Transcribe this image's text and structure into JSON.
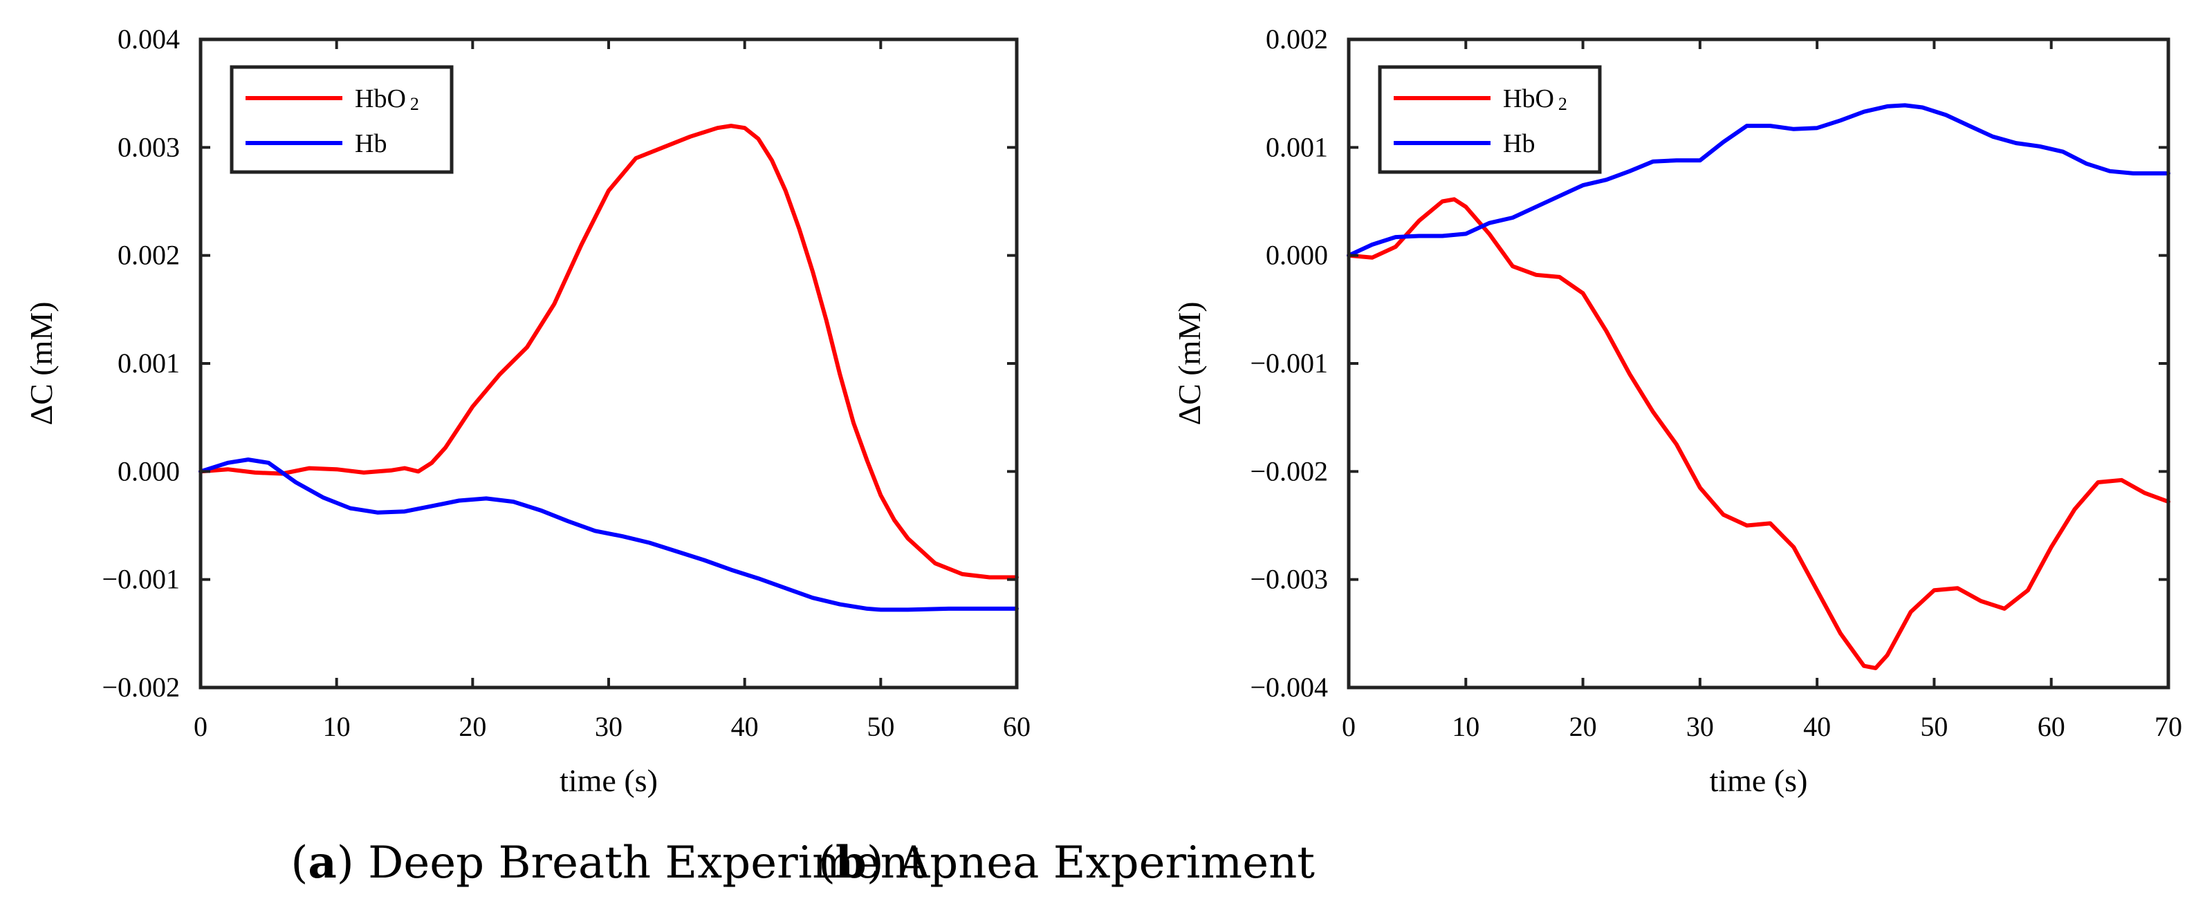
{
  "chart_data": [
    {
      "type": "line",
      "caption_letter": "a",
      "caption_text": "Deep Breath Experiment",
      "xlabel": "time (s)",
      "ylabel": "ΔC (mM)",
      "xlim": [
        0,
        60
      ],
      "ylim": [
        -0.002,
        0.004
      ],
      "xticks": [
        0,
        10,
        20,
        30,
        40,
        50,
        60
      ],
      "xtick_labels": [
        "0",
        "10",
        "20",
        "30",
        "40",
        "50",
        "60"
      ],
      "yticks": [
        0.004,
        0.003,
        0.002,
        0.001,
        0.0,
        -0.001,
        -0.002
      ],
      "ytick_labels": [
        "0.004",
        "0.003",
        "0.002",
        "0.001",
        "0.000",
        "−0.001",
        "−0.002"
      ],
      "legend_position": "top-left",
      "series": [
        {
          "name": "HbO",
          "name_sub": "2",
          "color": "#ff0000",
          "x": [
            0,
            2,
            4,
            6,
            8,
            10,
            12,
            14,
            15,
            16,
            17,
            18,
            20,
            22,
            24,
            26,
            28,
            30,
            32,
            34,
            36,
            38,
            39,
            40,
            41,
            42,
            43,
            44,
            45,
            46,
            47,
            48,
            49,
            50,
            51,
            52,
            54,
            56,
            58,
            60
          ],
          "y": [
            0.0,
            2e-05,
            -1e-05,
            -2e-05,
            3e-05,
            2e-05,
            -1e-05,
            1e-05,
            3e-05,
            0.0,
            8e-05,
            0.00022,
            0.0006,
            0.0009,
            0.00115,
            0.00155,
            0.0021,
            0.0026,
            0.0029,
            0.003,
            0.0031,
            0.00318,
            0.0032,
            0.00318,
            0.00308,
            0.00288,
            0.0026,
            0.00225,
            0.00185,
            0.0014,
            0.0009,
            0.00045,
            0.0001,
            -0.00022,
            -0.00045,
            -0.00062,
            -0.00085,
            -0.00095,
            -0.00098,
            -0.00098
          ]
        },
        {
          "name": "Hb",
          "color": "#0000ff",
          "x": [
            0,
            2,
            3.5,
            5,
            7,
            9,
            11,
            13,
            15,
            17,
            19,
            21,
            23,
            25,
            27,
            29,
            31,
            33,
            35,
            37,
            39,
            41,
            43,
            45,
            47,
            49,
            50,
            52,
            55,
            58,
            60
          ],
          "y": [
            0.0,
            8e-05,
            0.00011,
            8e-05,
            -0.0001,
            -0.00024,
            -0.00034,
            -0.00038,
            -0.00037,
            -0.00032,
            -0.00027,
            -0.00025,
            -0.00028,
            -0.00036,
            -0.00046,
            -0.00055,
            -0.0006,
            -0.00066,
            -0.00074,
            -0.00082,
            -0.00091,
            -0.00099,
            -0.00108,
            -0.00117,
            -0.00123,
            -0.00127,
            -0.00128,
            -0.00128,
            -0.00127,
            -0.00127,
            -0.00127
          ]
        }
      ]
    },
    {
      "type": "line",
      "caption_letter": "b",
      "caption_text": "Apnea Experiment",
      "xlabel": "time (s)",
      "ylabel": "ΔC (mM)",
      "xlim": [
        0,
        70
      ],
      "ylim": [
        -0.004,
        0.002
      ],
      "xticks": [
        0,
        10,
        20,
        30,
        40,
        50,
        60,
        70
      ],
      "xtick_labels": [
        "0",
        "10",
        "20",
        "30",
        "40",
        "50",
        "60",
        "70"
      ],
      "yticks": [
        0.002,
        0.001,
        0.0,
        -0.001,
        -0.002,
        -0.003,
        -0.004
      ],
      "ytick_labels": [
        "0.002",
        "0.001",
        "0.000",
        "−0.001",
        "−0.002",
        "−0.003",
        "−0.004"
      ],
      "legend_position": "top-left",
      "series": [
        {
          "name": "HbO",
          "name_sub": "2",
          "color": "#ff0000",
          "x": [
            0,
            2,
            4,
            6,
            8,
            9,
            10,
            12,
            14,
            16,
            18,
            20,
            22,
            24,
            26,
            28,
            30,
            32,
            34,
            36,
            38,
            40,
            42,
            44,
            45,
            46,
            48,
            50,
            52,
            54,
            56,
            58,
            60,
            62,
            64,
            66,
            68,
            70
          ],
          "y": [
            0.0,
            -2e-05,
            8e-05,
            0.00032,
            0.0005,
            0.00052,
            0.00045,
            0.0002,
            -0.0001,
            -0.00018,
            -0.0002,
            -0.00035,
            -0.0007,
            -0.0011,
            -0.00145,
            -0.00175,
            -0.00215,
            -0.0024,
            -0.0025,
            -0.00248,
            -0.0027,
            -0.0031,
            -0.0035,
            -0.0038,
            -0.00382,
            -0.0037,
            -0.0033,
            -0.0031,
            -0.00308,
            -0.0032,
            -0.00327,
            -0.0031,
            -0.0027,
            -0.00235,
            -0.0021,
            -0.00208,
            -0.0022,
            -0.00228
          ]
        },
        {
          "name": "Hb",
          "color": "#0000ff",
          "x": [
            0,
            2,
            4,
            6,
            8,
            10,
            12,
            14,
            16,
            18,
            20,
            22,
            24,
            26,
            28,
            30,
            32,
            34,
            36,
            38,
            40,
            42,
            44,
            46,
            47.5,
            49,
            51,
            53,
            55,
            57,
            59,
            61,
            63,
            65,
            67,
            68,
            70
          ],
          "y": [
            0.0,
            0.0001,
            0.00017,
            0.00018,
            0.00018,
            0.0002,
            0.0003,
            0.00035,
            0.00045,
            0.00055,
            0.00065,
            0.0007,
            0.00078,
            0.00087,
            0.00088,
            0.00088,
            0.00105,
            0.0012,
            0.0012,
            0.00117,
            0.00118,
            0.00125,
            0.00133,
            0.00138,
            0.00139,
            0.00137,
            0.0013,
            0.0012,
            0.0011,
            0.00104,
            0.00101,
            0.00096,
            0.00085,
            0.00078,
            0.00076,
            0.00076,
            0.00076
          ]
        }
      ]
    }
  ]
}
